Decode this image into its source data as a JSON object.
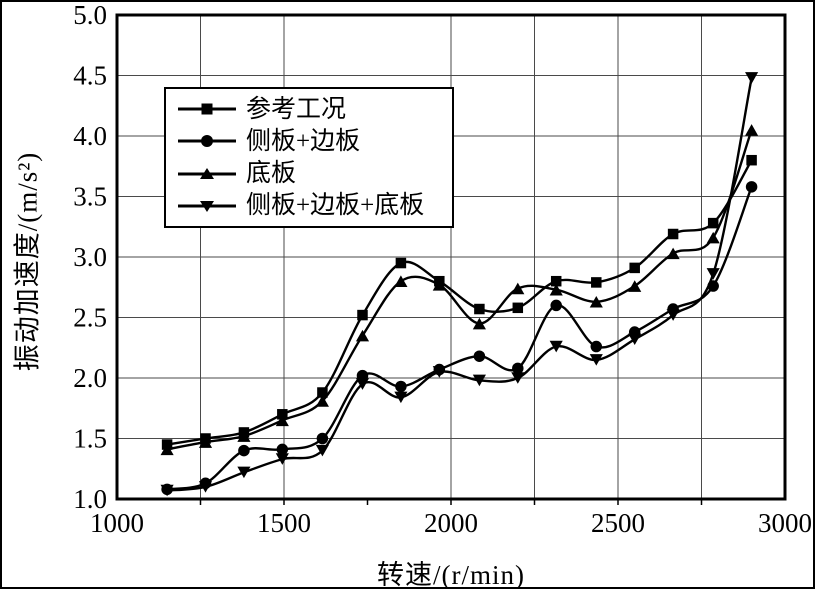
{
  "figure": {
    "background": "#ffffff",
    "line_color": "#000000",
    "grid_color": "#4a4a4a",
    "border_color": "#000000"
  },
  "chart_data": {
    "type": "line",
    "title": "",
    "xlabel": "转速/(r/min)",
    "ylabel": "振动加速度/(m/s²)",
    "xlim": [
      1000,
      3000
    ],
    "ylim": [
      1.0,
      5.0
    ],
    "grid": true,
    "x_tick_values": [
      1000,
      1500,
      2000,
      2500,
      3000
    ],
    "x_tick_labels": [
      "1000",
      "1500",
      "2000",
      "2500",
      "3000"
    ],
    "y_tick_values": [
      1.0,
      1.5,
      2.0,
      2.5,
      3.0,
      3.5,
      4.0,
      4.5,
      5.0
    ],
    "y_tick_labels": [
      "1.0",
      "1.5",
      "2.0",
      "2.5",
      "3.0",
      "3.5",
      "4.0",
      "4.5",
      "5.0"
    ],
    "x_gridlines": [
      1250,
      1500,
      2000,
      2250,
      2500,
      2750
    ],
    "y_gridlines": [
      1.5,
      2.0,
      2.5,
      3.0,
      3.5,
      4.0,
      4.5
    ],
    "x_minor_ticks": [
      1250,
      1500,
      1750,
      2000,
      2250,
      2500,
      2750
    ],
    "legend": {
      "position": "upper-left-inside",
      "entries": [
        "参考工况",
        "侧板+边板",
        "底板",
        "侧板+边板+底板"
      ]
    },
    "x": [
      1150,
      1265,
      1380,
      1495,
      1615,
      1735,
      1850,
      1965,
      2085,
      2200,
      2315,
      2435,
      2550,
      2665,
      2785,
      2900
    ],
    "series": [
      {
        "name": "参考工况",
        "marker": "square",
        "values": [
          1.45,
          1.5,
          1.55,
          1.7,
          1.88,
          2.52,
          2.95,
          2.8,
          2.57,
          2.58,
          2.8,
          2.79,
          2.91,
          3.19,
          3.28,
          3.8
        ]
      },
      {
        "name": "侧板+边板",
        "marker": "circle",
        "values": [
          1.08,
          1.13,
          1.4,
          1.41,
          1.5,
          2.02,
          1.93,
          2.07,
          2.18,
          2.08,
          2.6,
          2.26,
          2.38,
          2.57,
          2.76,
          3.58
        ]
      },
      {
        "name": "底板",
        "marker": "triangle-up",
        "values": [
          1.41,
          1.47,
          1.52,
          1.65,
          1.81,
          2.35,
          2.8,
          2.77,
          2.45,
          2.74,
          2.73,
          2.63,
          2.76,
          3.03,
          3.16,
          4.05
        ]
      },
      {
        "name": "侧板+边板+底板",
        "marker": "triangle-down",
        "values": [
          1.07,
          1.1,
          1.22,
          1.33,
          1.4,
          1.95,
          1.84,
          2.05,
          1.98,
          2.0,
          2.26,
          2.15,
          2.32,
          2.52,
          2.86,
          4.48
        ]
      }
    ]
  }
}
